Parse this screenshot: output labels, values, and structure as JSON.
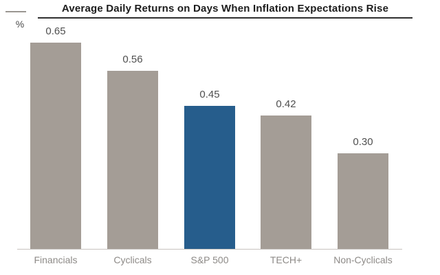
{
  "chart_data": {
    "type": "bar",
    "title": "Average Daily Returns on Days When Inflation Expectations Rise",
    "y_unit_label": "%",
    "categories": [
      "Financials",
      "Cyclicals",
      "S&P 500",
      "TECH+",
      "Non-Cyclicals"
    ],
    "values": [
      0.65,
      0.56,
      0.45,
      0.42,
      0.3
    ],
    "value_labels": [
      "0.65",
      "0.56",
      "0.45",
      "0.42",
      "0.30"
    ],
    "highlight_index": 2,
    "highlighted_category": "S&P 500",
    "bar_color": "#a49d96",
    "highlight_color": "#265d8c",
    "ylim": [
      0,
      0.78
    ],
    "xlabel": "",
    "ylabel": "%",
    "grid": false,
    "legend": false
  },
  "colors": {
    "title_text": "#1c1c1c",
    "title_underline": "#2f2f2f",
    "axis_line": "#c7c3bf",
    "value_label_text": "#4f4f4f",
    "category_label_text": "#8d8a87",
    "background": "#ffffff"
  }
}
